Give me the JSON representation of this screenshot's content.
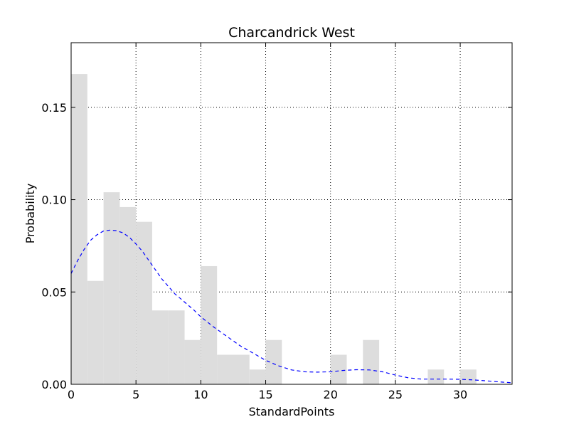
{
  "chart_data": {
    "type": "bar",
    "title": "Charcandrick West",
    "xlabel": "StandardPoints",
    "ylabel": "Probability",
    "xlim": [
      0,
      34
    ],
    "ylim": [
      0,
      0.185
    ],
    "grid": true,
    "xticks": [
      0,
      5,
      10,
      15,
      20,
      25,
      30
    ],
    "xtick_labels": [
      "0",
      "5",
      "10",
      "15",
      "20",
      "25",
      "30"
    ],
    "yticks": [
      0.0,
      0.05,
      0.1,
      0.15
    ],
    "ytick_labels": [
      "0.00",
      "0.05",
      "0.10",
      "0.15"
    ],
    "bar_color": "#dddddd",
    "histogram": {
      "bin_width": 1.25,
      "bins": [
        {
          "x0": 0.0,
          "value": 0.168
        },
        {
          "x0": 1.25,
          "value": 0.056
        },
        {
          "x0": 2.5,
          "value": 0.104
        },
        {
          "x0": 3.75,
          "value": 0.096
        },
        {
          "x0": 5.0,
          "value": 0.088
        },
        {
          "x0": 6.25,
          "value": 0.04
        },
        {
          "x0": 7.5,
          "value": 0.04
        },
        {
          "x0": 8.75,
          "value": 0.024
        },
        {
          "x0": 10.0,
          "value": 0.064
        },
        {
          "x0": 11.25,
          "value": 0.016
        },
        {
          "x0": 12.5,
          "value": 0.016
        },
        {
          "x0": 13.75,
          "value": 0.008
        },
        {
          "x0": 15.0,
          "value": 0.024
        },
        {
          "x0": 16.25,
          "value": 0.0
        },
        {
          "x0": 17.5,
          "value": 0.0
        },
        {
          "x0": 18.75,
          "value": 0.0
        },
        {
          "x0": 20.0,
          "value": 0.016
        },
        {
          "x0": 21.25,
          "value": 0.0
        },
        {
          "x0": 22.5,
          "value": 0.024
        },
        {
          "x0": 23.75,
          "value": 0.0
        },
        {
          "x0": 25.0,
          "value": 0.0
        },
        {
          "x0": 26.25,
          "value": 0.0
        },
        {
          "x0": 27.5,
          "value": 0.008
        },
        {
          "x0": 28.75,
          "value": 0.0
        },
        {
          "x0": 30.0,
          "value": 0.008
        }
      ]
    },
    "series": [
      {
        "type": "line",
        "style": "dashed",
        "color": "#0000ff",
        "x": [
          0,
          0.5,
          1,
          1.5,
          2,
          2.5,
          3,
          3.5,
          4,
          4.5,
          5,
          5.5,
          6,
          6.5,
          7,
          7.5,
          8,
          8.5,
          9,
          9.5,
          10,
          11,
          12,
          13,
          14,
          15,
          16,
          17,
          18,
          19,
          20,
          21,
          22,
          23,
          24,
          25,
          26,
          27,
          28,
          29,
          30,
          31,
          32,
          33,
          34
        ],
        "y": [
          0.06,
          0.067,
          0.073,
          0.078,
          0.081,
          0.083,
          0.0835,
          0.0832,
          0.082,
          0.0795,
          0.076,
          0.072,
          0.067,
          0.062,
          0.057,
          0.053,
          0.049,
          0.046,
          0.043,
          0.04,
          0.0365,
          0.031,
          0.026,
          0.021,
          0.017,
          0.013,
          0.01,
          0.0078,
          0.0068,
          0.0066,
          0.0068,
          0.0075,
          0.0079,
          0.0078,
          0.0068,
          0.005,
          0.0035,
          0.0028,
          0.0028,
          0.0028,
          0.0027,
          0.0024,
          0.0019,
          0.0013,
          0.0008
        ]
      }
    ]
  }
}
